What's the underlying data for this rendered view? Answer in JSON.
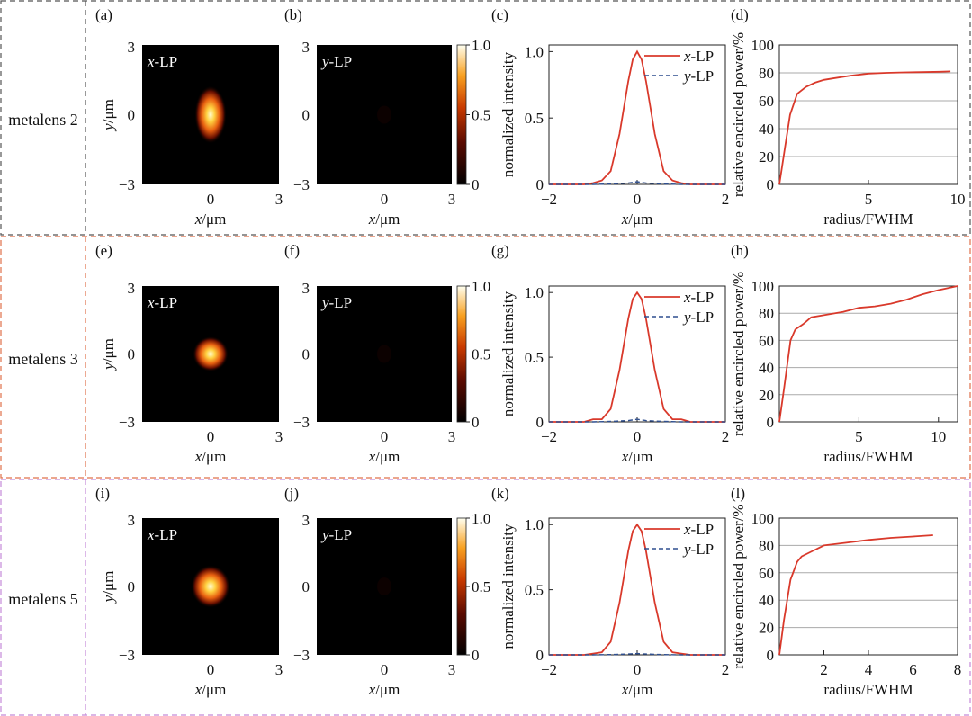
{
  "rows": [
    {
      "row_label": "metalens 2",
      "border_color": "#555555",
      "panels": {
        "x_map": {
          "letter": "(a)",
          "tag_var": "x",
          "tag_suffix": "-LP",
          "xlabel_var": "x",
          "ylabel_var": "y",
          "label_unit": "/μm",
          "ticks": [
            "−3",
            "0",
            "3"
          ],
          "spot_rx": 0.09,
          "spot_ry": 0.16
        },
        "y_map": {
          "letter": "(b)",
          "tag_var": "y",
          "tag_suffix": "-LP",
          "xlabel_var": "x",
          "label_unit": "/μm",
          "ticks": [
            "−3",
            "0",
            "3"
          ]
        },
        "colorbar": {
          "ticks": [
            "1.0",
            "0.5",
            "0"
          ]
        },
        "profile": {
          "letter": "(c)",
          "ylabel": "normalized intensity",
          "xlabel_var": "x",
          "xlabel_unit": "/μm",
          "xticks": [
            "−2",
            "0",
            "2"
          ],
          "yticks": [
            "0",
            "0.5",
            "1.0"
          ],
          "legend": [
            {
              "var": "x",
              "suffix": "-LP"
            },
            {
              "var": "y",
              "suffix": "-LP"
            }
          ]
        },
        "encircled": {
          "letter": "(d)",
          "ylabel": "relative encircled power/%",
          "xlabel": "radius/FWHM",
          "xticks": [
            "5",
            "10"
          ],
          "yticks": [
            "0",
            "20",
            "40",
            "60",
            "80",
            "100"
          ]
        }
      }
    },
    {
      "row_label": "metalens 3",
      "border_color": "#e0704a",
      "panels": {
        "x_map": {
          "letter": "(e)",
          "tag_var": "x",
          "tag_suffix": "-LP",
          "xlabel_var": "x",
          "ylabel_var": "y",
          "label_unit": "/μm",
          "ticks": [
            "−3",
            "0",
            "3"
          ],
          "spot_rx": 0.1,
          "spot_ry": 0.1
        },
        "y_map": {
          "letter": "(f)",
          "tag_var": "y",
          "tag_suffix": "-LP",
          "xlabel_var": "x",
          "label_unit": "/μm",
          "ticks": [
            "−3",
            "0",
            "3"
          ]
        },
        "colorbar": {
          "ticks": [
            "1.0",
            "0.5",
            "0"
          ]
        },
        "profile": {
          "letter": "(g)",
          "ylabel": "normalized intensity",
          "xlabel_var": "x",
          "xlabel_unit": "/μm",
          "xticks": [
            "−2",
            "0",
            "2"
          ],
          "yticks": [
            "0",
            "0.5",
            "1.0"
          ],
          "legend": [
            {
              "var": "x",
              "suffix": "-LP"
            },
            {
              "var": "y",
              "suffix": "-LP"
            }
          ]
        },
        "encircled": {
          "letter": "(h)",
          "ylabel": "relative encircled power/%",
          "xlabel": "radius/FWHM",
          "xticks": [
            "5",
            "10"
          ],
          "yticks": [
            "0",
            "20",
            "40",
            "60",
            "80",
            "100"
          ]
        }
      }
    },
    {
      "row_label": "metalens 5",
      "border_color": "#c48ad8",
      "panels": {
        "x_map": {
          "letter": "(i)",
          "tag_var": "x",
          "tag_suffix": "-LP",
          "xlabel_var": "x",
          "ylabel_var": "y",
          "label_unit": "/μm",
          "ticks": [
            "−3",
            "0",
            "3"
          ],
          "spot_rx": 0.11,
          "spot_ry": 0.12
        },
        "y_map": {
          "letter": "(j)",
          "tag_var": "y",
          "tag_suffix": "-LP",
          "xlabel_var": "x",
          "label_unit": "/μm",
          "ticks": [
            "−3",
            "0",
            "3"
          ]
        },
        "colorbar": {
          "ticks": [
            "1.0",
            "0.5",
            "0"
          ]
        },
        "profile": {
          "letter": "(k)",
          "ylabel": "normalized intensity",
          "xlabel_var": "x",
          "xlabel_unit": "/μm",
          "xticks": [
            "−2",
            "0",
            "2"
          ],
          "yticks": [
            "0",
            "0.5",
            "1.0"
          ],
          "legend": [
            {
              "var": "x",
              "suffix": "-LP"
            },
            {
              "var": "y",
              "suffix": "-LP"
            }
          ]
        },
        "encircled": {
          "letter": "(l)",
          "ylabel": "relative encircled power/%",
          "xlabel": "radius/FWHM",
          "xticks": [
            "2",
            "4",
            "6",
            "8"
          ],
          "yticks": [
            "0",
            "20",
            "40",
            "60",
            "80",
            "100"
          ]
        }
      }
    }
  ],
  "colors": {
    "x_lp": "#d9392b",
    "y_lp": "#2f4f8f",
    "grid": "#aaaaaa"
  },
  "chart_data": [
    {
      "panel": "(a)",
      "type": "heatmap",
      "xlim": [
        -3,
        3
      ],
      "ylim": [
        -3,
        3
      ],
      "zlim": [
        0,
        1
      ]
    },
    {
      "panel": "(b)",
      "type": "heatmap",
      "xlim": [
        -3,
        3
      ],
      "ylim": [
        -3,
        3
      ],
      "zlim": [
        0,
        1
      ]
    },
    {
      "panel": "(c)",
      "type": "line",
      "xlim": [
        -2,
        2
      ],
      "ylim": [
        0,
        1.05
      ],
      "series": [
        {
          "name": "x-LP",
          "style": "solid",
          "x": [
            -2,
            -1.5,
            -1.2,
            -1.0,
            -0.8,
            -0.6,
            -0.4,
            -0.3,
            -0.2,
            -0.1,
            0,
            0.1,
            0.2,
            0.3,
            0.4,
            0.6,
            0.8,
            1.0,
            1.2,
            1.5,
            2
          ],
          "y": [
            0.0,
            0.0,
            0.0,
            0.01,
            0.03,
            0.1,
            0.38,
            0.58,
            0.78,
            0.94,
            1.0,
            0.94,
            0.78,
            0.58,
            0.38,
            0.1,
            0.03,
            0.01,
            0.0,
            0.0,
            0.0
          ]
        },
        {
          "name": "y-LP",
          "style": "dashed",
          "x": [
            -2,
            -1,
            -0.5,
            -0.2,
            0,
            0.2,
            0.5,
            1,
            2
          ],
          "y": [
            0.0,
            0.0,
            0.005,
            0.01,
            0.02,
            0.01,
            0.005,
            0.0,
            0.0
          ]
        }
      ]
    },
    {
      "panel": "(d)",
      "type": "line",
      "xlim": [
        0,
        10
      ],
      "ylim": [
        0,
        100
      ],
      "series": [
        {
          "x": [
            0,
            0.3,
            0.6,
            1.0,
            1.5,
            2.0,
            2.5,
            3,
            4,
            5,
            6,
            7,
            8,
            9,
            9.6
          ],
          "y": [
            0,
            25,
            50,
            65,
            70,
            73,
            75,
            76,
            78,
            79.5,
            80,
            80.3,
            80.5,
            80.8,
            81
          ]
        }
      ]
    },
    {
      "panel": "(e)",
      "type": "heatmap",
      "xlim": [
        -3,
        3
      ],
      "ylim": [
        -3,
        3
      ],
      "zlim": [
        0,
        1
      ]
    },
    {
      "panel": "(f)",
      "type": "heatmap",
      "xlim": [
        -3,
        3
      ],
      "ylim": [
        -3,
        3
      ],
      "zlim": [
        0,
        1
      ]
    },
    {
      "panel": "(g)",
      "type": "line",
      "xlim": [
        -2,
        2
      ],
      "ylim": [
        0,
        1.05
      ],
      "series": [
        {
          "name": "x-LP",
          "style": "solid",
          "x": [
            -2,
            -1.5,
            -1.2,
            -1.0,
            -0.8,
            -0.6,
            -0.4,
            -0.3,
            -0.2,
            -0.1,
            0,
            0.1,
            0.2,
            0.3,
            0.4,
            0.6,
            0.8,
            1.0,
            1.2,
            1.5,
            2
          ],
          "y": [
            0.0,
            0.0,
            0.0,
            0.02,
            0.02,
            0.1,
            0.4,
            0.6,
            0.8,
            0.95,
            1.0,
            0.95,
            0.8,
            0.6,
            0.4,
            0.1,
            0.02,
            0.02,
            0.0,
            0.0,
            0.0
          ]
        },
        {
          "name": "y-LP",
          "style": "dashed",
          "x": [
            -2,
            -1,
            -0.5,
            -0.2,
            0,
            0.2,
            0.5,
            1,
            2
          ],
          "y": [
            0.0,
            0.0,
            0.005,
            0.01,
            0.02,
            0.01,
            0.005,
            0.0,
            0.0
          ]
        }
      ]
    },
    {
      "panel": "(h)",
      "type": "line",
      "xlim": [
        0,
        11.2
      ],
      "ylim": [
        0,
        100
      ],
      "series": [
        {
          "x": [
            0,
            0.3,
            0.7,
            1.0,
            1.5,
            2.0,
            3,
            4,
            5,
            6,
            7,
            8,
            9,
            10,
            11.2
          ],
          "y": [
            0,
            25,
            60,
            68,
            72,
            77,
            79,
            81,
            84,
            85,
            87,
            90,
            94,
            97,
            100
          ]
        }
      ]
    },
    {
      "panel": "(i)",
      "type": "heatmap",
      "xlim": [
        -3,
        3
      ],
      "ylim": [
        -3,
        3
      ],
      "zlim": [
        0,
        1
      ]
    },
    {
      "panel": "(j)",
      "type": "heatmap",
      "xlim": [
        -3,
        3
      ],
      "ylim": [
        -3,
        3
      ],
      "zlim": [
        0,
        1
      ]
    },
    {
      "panel": "(k)",
      "type": "line",
      "xlim": [
        -2,
        2
      ],
      "ylim": [
        0,
        1.05
      ],
      "series": [
        {
          "name": "x-LP",
          "style": "solid",
          "x": [
            -2,
            -1.5,
            -1.2,
            -1.0,
            -0.8,
            -0.6,
            -0.4,
            -0.3,
            -0.2,
            -0.1,
            0,
            0.1,
            0.2,
            0.3,
            0.4,
            0.6,
            0.8,
            1.0,
            1.2,
            1.5,
            2
          ],
          "y": [
            0.0,
            0.0,
            0.0,
            0.01,
            0.02,
            0.1,
            0.4,
            0.6,
            0.8,
            0.95,
            1.0,
            0.95,
            0.8,
            0.6,
            0.4,
            0.1,
            0.02,
            0.01,
            0.0,
            0.0,
            0.0
          ]
        },
        {
          "name": "y-LP",
          "style": "dashed",
          "x": [
            -2,
            -1,
            -0.5,
            -0.2,
            0,
            0.2,
            0.5,
            1,
            2
          ],
          "y": [
            0.0,
            0.0,
            0.003,
            0.006,
            0.01,
            0.006,
            0.003,
            0.0,
            0.0
          ]
        }
      ]
    },
    {
      "panel": "(l)",
      "type": "line",
      "xlim": [
        0,
        8
      ],
      "ylim": [
        0,
        100
      ],
      "series": [
        {
          "x": [
            0,
            0.2,
            0.5,
            0.8,
            1.0,
            1.5,
            2.0,
            2.5,
            3,
            4,
            5,
            6,
            6.9
          ],
          "y": [
            0,
            25,
            55,
            68,
            72,
            76,
            80,
            81,
            82,
            84,
            85.5,
            86.5,
            87.5
          ]
        }
      ]
    }
  ]
}
